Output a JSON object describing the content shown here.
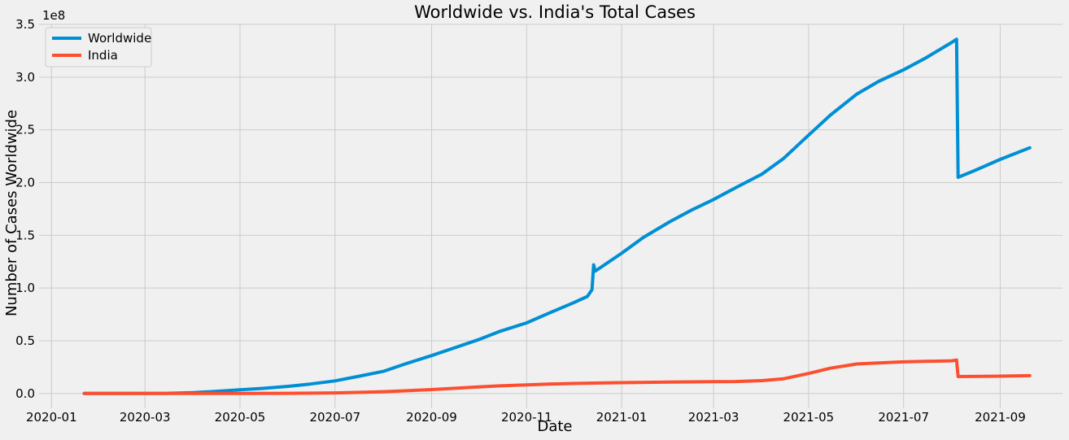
{
  "chart_data": {
    "type": "line",
    "title": "Worldwide vs. India's Total Cases",
    "xlabel": "Date",
    "ylabel": "Number of Cases Worldwide",
    "y_offset_label": "1e8",
    "xlim": [
      "2019-12-24",
      "2021-10-11"
    ],
    "ylim": [
      -0.14,
      3.5
    ],
    "y_scale_note": "values in units of 1e8",
    "grid": true,
    "legend_position": "top-left",
    "x_ticks": [
      {
        "date": "2020-01-01",
        "label": "2020-01"
      },
      {
        "date": "2020-03-01",
        "label": "2020-03"
      },
      {
        "date": "2020-05-01",
        "label": "2020-05"
      },
      {
        "date": "2020-07-01",
        "label": "2020-07"
      },
      {
        "date": "2020-09-01",
        "label": "2020-09"
      },
      {
        "date": "2020-11-01",
        "label": "2020-11"
      },
      {
        "date": "2021-01-01",
        "label": "2021-01"
      },
      {
        "date": "2021-03-01",
        "label": "2021-03"
      },
      {
        "date": "2021-05-01",
        "label": "2021-05"
      },
      {
        "date": "2021-07-01",
        "label": "2021-07"
      },
      {
        "date": "2021-09-01",
        "label": "2021-09"
      }
    ],
    "y_ticks": [
      {
        "value": 0.0,
        "label": "0.0"
      },
      {
        "value": 0.5,
        "label": "0.5"
      },
      {
        "value": 1.0,
        "label": "1.0"
      },
      {
        "value": 1.5,
        "label": "1.5"
      },
      {
        "value": 2.0,
        "label": "2.0"
      },
      {
        "value": 2.5,
        "label": "2.5"
      },
      {
        "value": 3.0,
        "label": "3.0"
      },
      {
        "value": 3.5,
        "label": "3.5"
      }
    ],
    "series": [
      {
        "name": "Worldwide",
        "color": "#008fd5",
        "points": [
          [
            "2020-01-22",
            0.0
          ],
          [
            "2020-02-15",
            0.0007
          ],
          [
            "2020-03-15",
            0.0017
          ],
          [
            "2020-04-01",
            0.009
          ],
          [
            "2020-04-15",
            0.02
          ],
          [
            "2020-05-01",
            0.035
          ],
          [
            "2020-05-15",
            0.048
          ],
          [
            "2020-06-01",
            0.068
          ],
          [
            "2020-06-15",
            0.09
          ],
          [
            "2020-07-01",
            0.12
          ],
          [
            "2020-07-15",
            0.16
          ],
          [
            "2020-08-01",
            0.21
          ],
          [
            "2020-08-15",
            0.28
          ],
          [
            "2020-09-01",
            0.36
          ],
          [
            "2020-09-15",
            0.43
          ],
          [
            "2020-10-01",
            0.51
          ],
          [
            "2020-10-15",
            0.59
          ],
          [
            "2020-11-01",
            0.67
          ],
          [
            "2020-11-15",
            0.76
          ],
          [
            "2020-12-01",
            0.86
          ],
          [
            "2020-12-10",
            0.92
          ],
          [
            "2020-12-13",
            0.985
          ],
          [
            "2020-12-14",
            1.22
          ],
          [
            "2020-12-15",
            1.16
          ],
          [
            "2021-01-01",
            1.33
          ],
          [
            "2021-01-15",
            1.48
          ],
          [
            "2021-02-01",
            1.63
          ],
          [
            "2021-02-15",
            1.74
          ],
          [
            "2021-03-01",
            1.84
          ],
          [
            "2021-03-15",
            1.95
          ],
          [
            "2021-04-01",
            2.08
          ],
          [
            "2021-04-15",
            2.23
          ],
          [
            "2021-05-01",
            2.45
          ],
          [
            "2021-05-15",
            2.64
          ],
          [
            "2021-06-01",
            2.84
          ],
          [
            "2021-06-15",
            2.96
          ],
          [
            "2021-07-01",
            3.07
          ],
          [
            "2021-07-15",
            3.18
          ],
          [
            "2021-08-01",
            3.33
          ],
          [
            "2021-08-04",
            3.36
          ],
          [
            "2021-08-05",
            2.05
          ],
          [
            "2021-08-15",
            2.11
          ],
          [
            "2021-09-01",
            2.22
          ],
          [
            "2021-09-20",
            2.33
          ]
        ]
      },
      {
        "name": "India",
        "color": "#fc4f30",
        "points": [
          [
            "2020-01-22",
            0.0
          ],
          [
            "2020-04-01",
            0.0
          ],
          [
            "2020-05-01",
            0.0004
          ],
          [
            "2020-06-01",
            0.002
          ],
          [
            "2020-07-01",
            0.006
          ],
          [
            "2020-07-15",
            0.01
          ],
          [
            "2020-08-01",
            0.017
          ],
          [
            "2020-08-15",
            0.026
          ],
          [
            "2020-09-01",
            0.037
          ],
          [
            "2020-09-15",
            0.049
          ],
          [
            "2020-10-01",
            0.063
          ],
          [
            "2020-10-15",
            0.073
          ],
          [
            "2020-11-01",
            0.082
          ],
          [
            "2020-11-15",
            0.089
          ],
          [
            "2020-12-01",
            0.095
          ],
          [
            "2020-12-15",
            0.099
          ],
          [
            "2021-01-01",
            0.103
          ],
          [
            "2021-02-01",
            0.108
          ],
          [
            "2021-03-01",
            0.112
          ],
          [
            "2021-03-15",
            0.114
          ],
          [
            "2021-04-01",
            0.122
          ],
          [
            "2021-04-15",
            0.14
          ],
          [
            "2021-05-01",
            0.19
          ],
          [
            "2021-05-15",
            0.24
          ],
          [
            "2021-06-01",
            0.28
          ],
          [
            "2021-06-15",
            0.29
          ],
          [
            "2021-07-01",
            0.3
          ],
          [
            "2021-08-01",
            0.31
          ],
          [
            "2021-08-04",
            0.317
          ],
          [
            "2021-08-05",
            0.161
          ],
          [
            "2021-09-01",
            0.165
          ],
          [
            "2021-09-20",
            0.169
          ]
        ]
      }
    ]
  }
}
